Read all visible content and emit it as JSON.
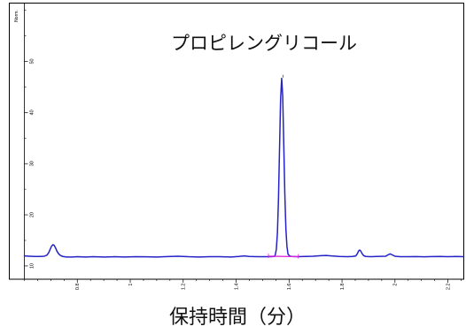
{
  "chart_data": {
    "type": "line",
    "title": "プロピレングリコール",
    "xlabel": "保持時間（分）",
    "ylabel": "Norm.",
    "xlim": [
      0.6,
      2.26
    ],
    "ylim": [
      7.4,
      61.4
    ],
    "grid": false,
    "x_ticks": [
      0.8,
      1,
      1.2,
      1.4,
      1.6,
      1.8,
      2,
      2.2
    ],
    "x_tick_labels": [
      "0.8",
      "1",
      "1.2",
      "1.4",
      "1.6",
      "1.8",
      "2",
      "2.2"
    ],
    "y_ticks": [
      10,
      20,
      30,
      40,
      50
    ],
    "y_tick_labels": [
      "10",
      "20",
      "30",
      "40",
      "50"
    ],
    "series": [
      {
        "color": "#2323c8",
        "x": [
          0.6,
          0.62,
          0.64,
          0.66,
          0.675,
          0.685,
          0.692,
          0.698,
          0.703,
          0.708,
          0.713,
          0.718,
          0.723,
          0.729,
          0.736,
          0.745,
          0.76,
          0.78,
          0.8,
          0.83,
          0.86,
          0.9,
          0.94,
          0.98,
          1.02,
          1.06,
          1.1,
          1.14,
          1.18,
          1.22,
          1.26,
          1.3,
          1.34,
          1.38,
          1.41,
          1.43,
          1.45,
          1.48,
          1.51,
          1.53,
          1.545,
          1.548,
          1.552,
          1.556,
          1.56,
          1.564,
          1.568,
          1.572,
          1.576,
          1.58,
          1.584,
          1.588,
          1.592,
          1.596,
          1.602,
          1.61,
          1.63,
          1.66,
          1.69,
          1.72,
          1.74,
          1.76,
          1.79,
          1.82,
          1.84,
          1.852,
          1.858,
          1.863,
          1.867,
          1.871,
          1.876,
          1.882,
          1.89,
          1.91,
          1.93,
          1.965,
          1.975,
          1.982,
          1.99,
          2.0,
          2.02,
          2.05,
          2.08,
          2.11,
          2.14,
          2.17,
          2.2,
          2.23,
          2.26
        ],
        "y": [
          11.95,
          11.9,
          11.85,
          11.85,
          11.9,
          12.1,
          12.6,
          13.3,
          13.9,
          14.15,
          14.0,
          13.5,
          12.9,
          12.4,
          12.05,
          11.85,
          11.75,
          11.75,
          11.8,
          11.75,
          11.8,
          11.75,
          11.8,
          11.75,
          11.8,
          11.78,
          11.75,
          11.82,
          11.9,
          11.8,
          11.75,
          11.8,
          11.8,
          11.75,
          11.85,
          11.95,
          11.85,
          11.8,
          11.8,
          11.8,
          11.85,
          12.2,
          13.3,
          16.5,
          23.1,
          33.0,
          42.6,
          46.7,
          43.2,
          33.6,
          24.0,
          17.2,
          13.8,
          12.3,
          11.95,
          11.85,
          11.8,
          11.85,
          11.9,
          12.0,
          12.05,
          11.95,
          11.85,
          11.8,
          11.85,
          11.95,
          12.4,
          12.95,
          13.1,
          12.9,
          12.4,
          12.0,
          11.85,
          11.8,
          11.85,
          11.9,
          12.2,
          12.35,
          12.15,
          11.9,
          11.8,
          11.8,
          11.82,
          11.78,
          11.82,
          11.85,
          11.8,
          11.85,
          11.8
        ]
      }
    ],
    "integration_baseline": {
      "color": "#e020e0",
      "x": [
        1.522,
        1.635
      ],
      "y": [
        11.9,
        11.8
      ]
    },
    "apex_marker": {
      "color": "#e02020",
      "x": 1.577,
      "y": 47.1
    }
  }
}
